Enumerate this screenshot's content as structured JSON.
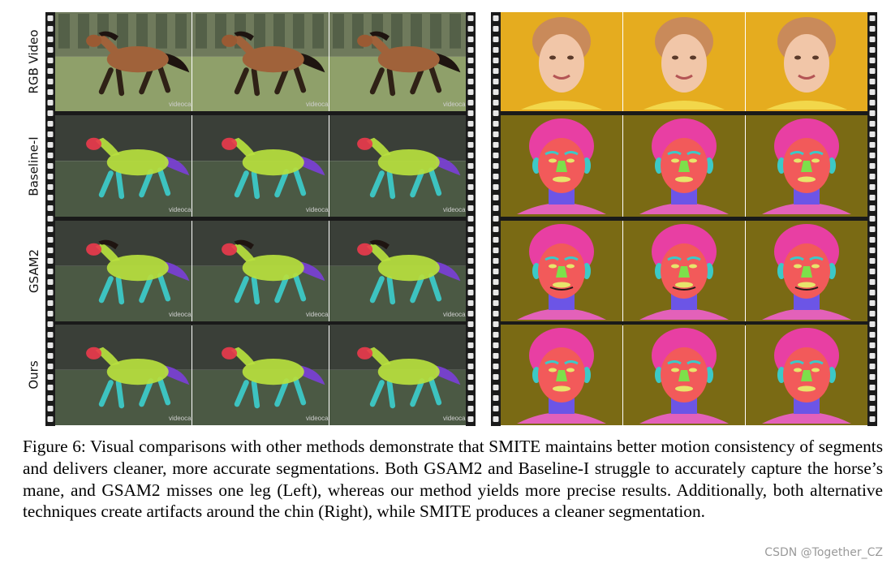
{
  "row_labels": [
    "RGB Video",
    "Baseline-I",
    "GSAM2",
    "Ours"
  ],
  "caption": "Figure 6: Visual comparisons with other methods demonstrate that SMITE maintains better motion consistency of segments and delivers cleaner, more accurate segmentations. Both GSAM2 and Baseline-I struggle to accurately capture the horse’s mane, and GSAM2 misses one leg (Left), whereas our method yields more precise results. Additionally, both alternative techniques create artifacts around the chin (Right), while SMITE produces a cleaner segmentation.",
  "frame_watermark": "videoca",
  "watermark": "CSDN @Together_CZ"
}
